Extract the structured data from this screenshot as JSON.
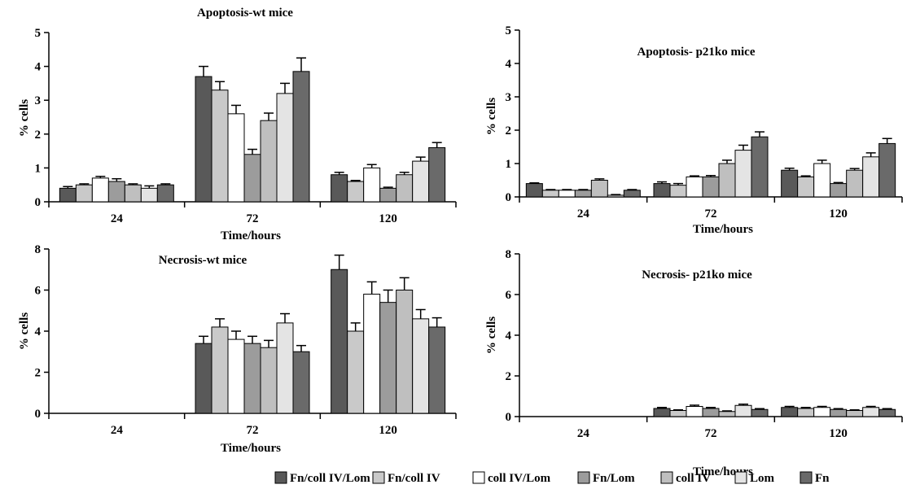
{
  "legend": [
    {
      "name": "Fn/coll IV/Lom",
      "color": "#595959"
    },
    {
      "name": "Fn/coll IV",
      "color": "#c9c9c9"
    },
    {
      "name": "coll IV/Lom",
      "color": "#ffffff"
    },
    {
      "name": "Fn/Lom",
      "color": "#9c9c9c"
    },
    {
      "name": "coll IV",
      "color": "#bfbfbf"
    },
    {
      "name": "Lom",
      "color": "#e4e4e4"
    },
    {
      "name": "Fn",
      "color": "#6a6a6a"
    }
  ],
  "chart_data": [
    {
      "type": "bar",
      "title": "Apoptosis-wt mice",
      "xlabel": "Time/hours",
      "ylabel": "% cells",
      "ylim": [
        0,
        5
      ],
      "yticks": [
        0,
        1,
        2,
        3,
        4,
        5
      ],
      "categories": [
        "24",
        "72",
        "120"
      ],
      "series": [
        {
          "name": "Fn/coll IV/Lom",
          "values": [
            0.4,
            3.7,
            0.8
          ],
          "errors": [
            0.05,
            0.3,
            0.07
          ]
        },
        {
          "name": "Fn/coll IV",
          "values": [
            0.5,
            3.3,
            0.6
          ],
          "errors": [
            0.03,
            0.25,
            0.03
          ]
        },
        {
          "name": "coll IV/Lom",
          "values": [
            0.7,
            2.6,
            1.0
          ],
          "errors": [
            0.05,
            0.25,
            0.1
          ]
        },
        {
          "name": "Fn/Lom",
          "values": [
            0.6,
            1.4,
            0.4
          ],
          "errors": [
            0.08,
            0.15,
            0.03
          ]
        },
        {
          "name": "coll IV",
          "values": [
            0.5,
            2.4,
            0.8
          ],
          "errors": [
            0.03,
            0.22,
            0.07
          ]
        },
        {
          "name": "Lom",
          "values": [
            0.4,
            3.2,
            1.2
          ],
          "errors": [
            0.07,
            0.3,
            0.12
          ]
        },
        {
          "name": "Fn",
          "values": [
            0.5,
            3.85,
            1.6
          ],
          "errors": [
            0.03,
            0.4,
            0.15
          ]
        }
      ]
    },
    {
      "type": "bar",
      "title": "Apoptosis- p21ko mice",
      "xlabel": "Time/hours",
      "ylabel": "% cells",
      "ylim": [
        0,
        5
      ],
      "yticks": [
        0,
        1,
        2,
        3,
        4,
        5
      ],
      "categories": [
        "24",
        "72",
        "120"
      ],
      "series": [
        {
          "name": "Fn/coll IV/Lom",
          "values": [
            0.4,
            0.4,
            0.8
          ],
          "errors": [
            0.02,
            0.05,
            0.06
          ]
        },
        {
          "name": "Fn/coll IV",
          "values": [
            0.2,
            0.35,
            0.6
          ],
          "errors": [
            0.02,
            0.05,
            0.03
          ]
        },
        {
          "name": "coll IV/Lom",
          "values": [
            0.2,
            0.6,
            1.0
          ],
          "errors": [
            0.02,
            0.03,
            0.1
          ]
        },
        {
          "name": "Fn/Lom",
          "values": [
            0.2,
            0.6,
            0.4
          ],
          "errors": [
            0.02,
            0.04,
            0.03
          ]
        },
        {
          "name": "coll IV",
          "values": [
            0.5,
            1.0,
            0.8
          ],
          "errors": [
            0.04,
            0.1,
            0.05
          ]
        },
        {
          "name": "Lom",
          "values": [
            0.05,
            1.4,
            1.2
          ],
          "errors": [
            0.02,
            0.15,
            0.12
          ]
        },
        {
          "name": "Fn",
          "values": [
            0.2,
            1.8,
            1.6
          ],
          "errors": [
            0.02,
            0.15,
            0.15
          ]
        }
      ]
    },
    {
      "type": "bar",
      "title": "Necrosis-wt mice",
      "xlabel": "Time/hours",
      "ylabel": "% cells",
      "ylim": [
        0,
        8
      ],
      "yticks": [
        0,
        2,
        4,
        6,
        8
      ],
      "categories": [
        "24",
        "72",
        "120"
      ],
      "series": [
        {
          "name": "Fn/coll IV/Lom",
          "values": [
            0,
            3.4,
            7.0
          ],
          "errors": [
            0,
            0.35,
            0.7
          ]
        },
        {
          "name": "Fn/coll IV",
          "values": [
            0,
            4.2,
            4.0
          ],
          "errors": [
            0,
            0.4,
            0.4
          ]
        },
        {
          "name": "coll IV/Lom",
          "values": [
            0,
            3.6,
            5.8
          ],
          "errors": [
            0,
            0.4,
            0.6
          ]
        },
        {
          "name": "Fn/Lom",
          "values": [
            0,
            3.4,
            5.4
          ],
          "errors": [
            0,
            0.35,
            0.6
          ]
        },
        {
          "name": "coll IV",
          "values": [
            0,
            3.2,
            6.0
          ],
          "errors": [
            0,
            0.35,
            0.6
          ]
        },
        {
          "name": "Lom",
          "values": [
            0,
            4.4,
            4.6
          ],
          "errors": [
            0,
            0.45,
            0.45
          ]
        },
        {
          "name": "Fn",
          "values": [
            0,
            3.0,
            4.2
          ],
          "errors": [
            0,
            0.3,
            0.45
          ]
        }
      ]
    },
    {
      "type": "bar",
      "title": "Necrosis- p21ko mice",
      "xlabel": "Time/hours",
      "ylabel": "% cells",
      "ylim": [
        0,
        8
      ],
      "yticks": [
        0,
        2,
        4,
        6,
        8
      ],
      "categories": [
        "24",
        "72",
        "120"
      ],
      "series": [
        {
          "name": "Fn/coll IV/Lom",
          "values": [
            0,
            0.4,
            0.45
          ],
          "errors": [
            0,
            0.05,
            0.05
          ]
        },
        {
          "name": "Fn/coll IV",
          "values": [
            0,
            0.3,
            0.4
          ],
          "errors": [
            0,
            0.03,
            0.05
          ]
        },
        {
          "name": "coll IV/Lom",
          "values": [
            0,
            0.5,
            0.45
          ],
          "errors": [
            0,
            0.06,
            0.05
          ]
        },
        {
          "name": "Fn/Lom",
          "values": [
            0,
            0.4,
            0.35
          ],
          "errors": [
            0,
            0.05,
            0.04
          ]
        },
        {
          "name": "coll IV",
          "values": [
            0,
            0.25,
            0.3
          ],
          "errors": [
            0,
            0.03,
            0.03
          ]
        },
        {
          "name": "Lom",
          "values": [
            0,
            0.55,
            0.45
          ],
          "errors": [
            0,
            0.06,
            0.05
          ]
        },
        {
          "name": "Fn",
          "values": [
            0,
            0.35,
            0.35
          ],
          "errors": [
            0,
            0.04,
            0.04
          ]
        }
      ]
    }
  ]
}
